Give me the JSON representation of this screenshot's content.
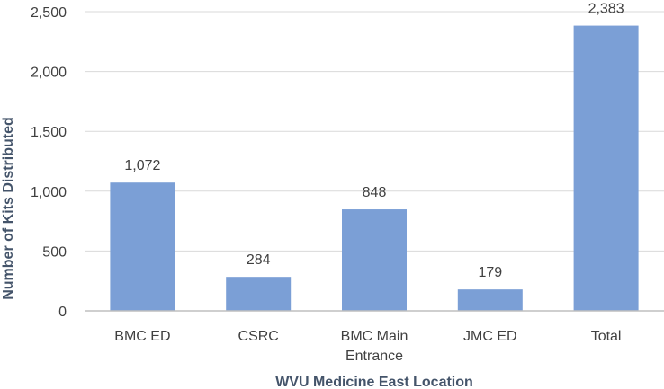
{
  "chart_data": {
    "type": "bar",
    "categories": [
      "BMC ED",
      "CSRC",
      "BMC Main Entrance",
      "JMC ED",
      "Total"
    ],
    "category_lines": [
      [
        "BMC ED"
      ],
      [
        "CSRC"
      ],
      [
        "BMC Main",
        "Entrance"
      ],
      [
        "JMC ED"
      ],
      [
        "Total"
      ]
    ],
    "values": [
      1072,
      284,
      848,
      179,
      2383
    ],
    "data_labels": [
      "1,072",
      "284",
      "848",
      "179",
      "2,383"
    ],
    "title": "",
    "xlabel": "WVU Medicine East Location",
    "ylabel": "Number of Kits Distributed",
    "ylim": [
      0,
      2500
    ],
    "yticks": [
      0,
      500,
      1000,
      1500,
      2000,
      2500
    ],
    "ytick_labels": [
      "0",
      "500",
      "1,000",
      "1,500",
      "2,000",
      "2,500"
    ],
    "grid": true,
    "legend": "none",
    "colors": {
      "bar": "#7b9fd6",
      "grid": "#d9d9d9",
      "axis": "#bfbfbf",
      "text": "#404040",
      "axis_title": "#44546a"
    }
  }
}
